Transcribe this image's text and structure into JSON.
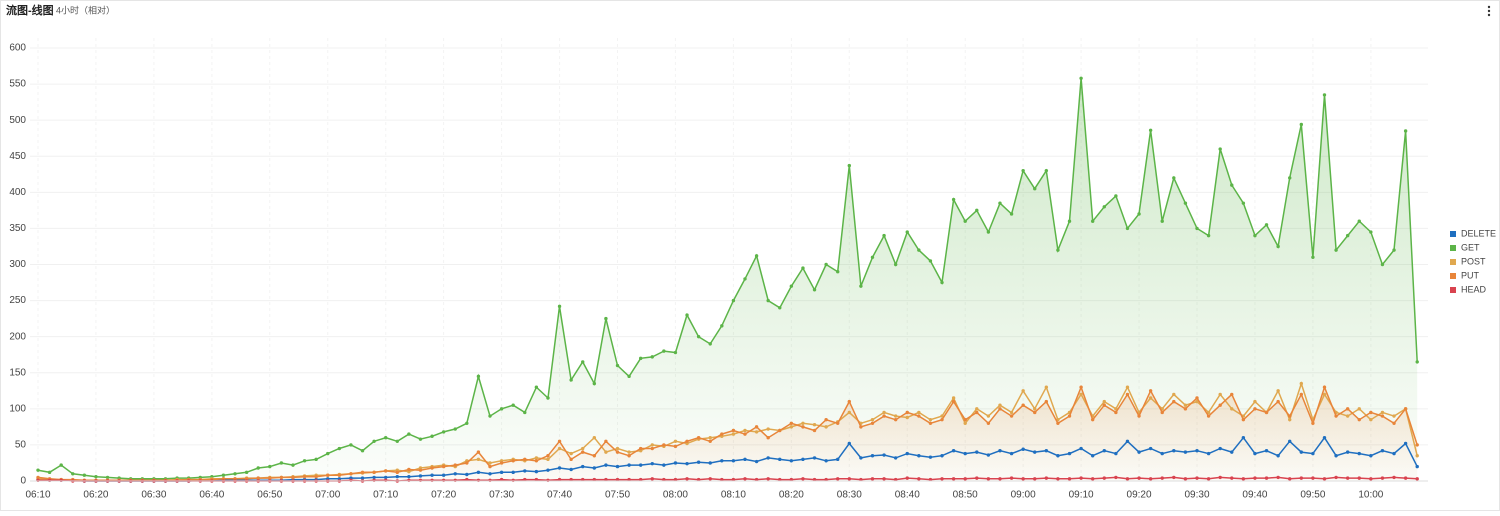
{
  "chart_data": {
    "type": "line",
    "title": "流图-线图",
    "subtitle": "4小时（相对）",
    "categories": [
      "06:10",
      null,
      null,
      null,
      null,
      "06:20",
      null,
      null,
      null,
      null,
      "06:30",
      null,
      null,
      null,
      null,
      "06:40",
      null,
      null,
      null,
      null,
      "06:50",
      null,
      null,
      null,
      null,
      "07:00",
      null,
      null,
      null,
      null,
      "07:10",
      null,
      null,
      null,
      null,
      "07:20",
      null,
      null,
      null,
      null,
      "07:30",
      null,
      null,
      null,
      null,
      "07:40",
      null,
      null,
      null,
      null,
      "07:50",
      null,
      null,
      null,
      null,
      "08:00",
      null,
      null,
      null,
      null,
      "08:10",
      null,
      null,
      null,
      null,
      "08:20",
      null,
      null,
      null,
      null,
      "08:30",
      null,
      null,
      null,
      null,
      "08:40",
      null,
      null,
      null,
      null,
      "08:50",
      null,
      null,
      null,
      null,
      "09:00",
      null,
      null,
      null,
      null,
      "09:10",
      null,
      null,
      null,
      null,
      "09:20",
      null,
      null,
      null,
      null,
      "09:30",
      null,
      null,
      null,
      null,
      "09:40",
      null,
      null,
      null,
      null,
      "09:50",
      null,
      null,
      null,
      null,
      "10:00",
      null,
      null,
      null,
      null
    ],
    "series": [
      {
        "name": "DELETE",
        "color": "#1f6fc0",
        "values": [
          2,
          1,
          1,
          1,
          0,
          0,
          0,
          0,
          0,
          0,
          0,
          0,
          0,
          0,
          1,
          1,
          1,
          1,
          1,
          1,
          1,
          1,
          2,
          2,
          2,
          3,
          3,
          4,
          4,
          5,
          5,
          6,
          6,
          7,
          8,
          8,
          10,
          9,
          12,
          10,
          12,
          12,
          14,
          13,
          15,
          18,
          16,
          20,
          18,
          22,
          20,
          22,
          22,
          24,
          22,
          25,
          24,
          26,
          25,
          28,
          28,
          30,
          27,
          32,
          30,
          28,
          30,
          32,
          28,
          30,
          52,
          32,
          35,
          36,
          32,
          38,
          35,
          33,
          35,
          42,
          38,
          40,
          36,
          42,
          38,
          44,
          40,
          42,
          35,
          38,
          45,
          35,
          42,
          38,
          55,
          40,
          45,
          38,
          42,
          40,
          42,
          38,
          45,
          40,
          60,
          38,
          42,
          35,
          55,
          40,
          38,
          60,
          35,
          40,
          38,
          35,
          42,
          38,
          52,
          20
        ]
      },
      {
        "name": "GET",
        "color": "#5cb448",
        "values": [
          15,
          12,
          22,
          10,
          8,
          6,
          5,
          4,
          3,
          3,
          3,
          3,
          4,
          4,
          5,
          6,
          8,
          10,
          12,
          18,
          20,
          25,
          22,
          28,
          30,
          38,
          45,
          50,
          42,
          55,
          60,
          55,
          65,
          58,
          62,
          68,
          72,
          80,
          145,
          90,
          100,
          105,
          95,
          130,
          115,
          242,
          140,
          165,
          135,
          225,
          160,
          145,
          170,
          172,
          180,
          178,
          230,
          200,
          190,
          215,
          250,
          280,
          312,
          250,
          240,
          270,
          295,
          265,
          300,
          290,
          437,
          270,
          310,
          340,
          300,
          345,
          320,
          305,
          275,
          390,
          360,
          375,
          345,
          385,
          370,
          430,
          405,
          430,
          320,
          360,
          558,
          360,
          380,
          395,
          350,
          370,
          486,
          360,
          420,
          385,
          350,
          340,
          460,
          410,
          385,
          340,
          355,
          325,
          420,
          494,
          310,
          535,
          320,
          340,
          360,
          345,
          300,
          320,
          485,
          165
        ]
      },
      {
        "name": "POST",
        "color": "#e0a84f",
        "values": [
          3,
          2,
          2,
          1,
          1,
          1,
          1,
          1,
          1,
          1,
          1,
          1,
          2,
          2,
          2,
          3,
          3,
          3,
          4,
          4,
          5,
          5,
          6,
          7,
          8,
          8,
          9,
          10,
          11,
          12,
          14,
          15,
          13,
          18,
          20,
          22,
          20,
          28,
          30,
          25,
          28,
          30,
          28,
          32,
          30,
          45,
          38,
          45,
          60,
          40,
          45,
          40,
          42,
          50,
          48,
          55,
          52,
          58,
          60,
          62,
          65,
          70,
          68,
          72,
          70,
          75,
          80,
          78,
          75,
          82,
          95,
          80,
          85,
          95,
          90,
          88,
          95,
          85,
          90,
          115,
          80,
          100,
          90,
          105,
          95,
          125,
          100,
          130,
          85,
          95,
          120,
          90,
          110,
          100,
          130,
          95,
          115,
          100,
          120,
          105,
          110,
          95,
          120,
          100,
          90,
          110,
          95,
          125,
          85,
          135,
          85,
          120,
          95,
          90,
          100,
          85,
          95,
          90,
          100,
          35
        ]
      },
      {
        "name": "PUT",
        "color": "#e8853a",
        "values": [
          5,
          3,
          2,
          2,
          1,
          1,
          1,
          1,
          1,
          1,
          1,
          1,
          1,
          2,
          2,
          2,
          3,
          3,
          3,
          4,
          4,
          5,
          5,
          6,
          6,
          8,
          8,
          10,
          12,
          12,
          14,
          12,
          16,
          15,
          18,
          20,
          22,
          25,
          40,
          20,
          25,
          28,
          30,
          28,
          35,
          55,
          30,
          40,
          35,
          55,
          40,
          35,
          45,
          45,
          50,
          48,
          55,
          60,
          55,
          65,
          70,
          65,
          75,
          60,
          70,
          80,
          75,
          70,
          85,
          80,
          110,
          75,
          80,
          90,
          85,
          95,
          90,
          80,
          85,
          110,
          85,
          95,
          80,
          100,
          90,
          105,
          95,
          110,
          80,
          90,
          130,
          85,
          105,
          95,
          120,
          90,
          125,
          95,
          110,
          100,
          115,
          90,
          105,
          120,
          85,
          100,
          95,
          110,
          90,
          120,
          80,
          130,
          90,
          100,
          85,
          95,
          90,
          80,
          100,
          50
        ]
      },
      {
        "name": "HEAD",
        "color": "#d9434f",
        "values": [
          1,
          1,
          1,
          0,
          0,
          0,
          0,
          0,
          0,
          0,
          0,
          0,
          0,
          0,
          0,
          0,
          0,
          0,
          0,
          0,
          0,
          0,
          0,
          0,
          0,
          0,
          0,
          1,
          0,
          1,
          1,
          0,
          1,
          1,
          1,
          1,
          1,
          2,
          1,
          1,
          2,
          1,
          2,
          2,
          1,
          2,
          2,
          2,
          2,
          2,
          2,
          2,
          2,
          3,
          2,
          2,
          3,
          2,
          3,
          2,
          2,
          3,
          2,
          3,
          2,
          2,
          3,
          2,
          2,
          3,
          3,
          2,
          3,
          3,
          2,
          4,
          3,
          2,
          3,
          3,
          3,
          4,
          3,
          3,
          4,
          3,
          3,
          4,
          3,
          3,
          4,
          3,
          4,
          5,
          3,
          4,
          3,
          4,
          5,
          3,
          4,
          3,
          5,
          4,
          3,
          4,
          4,
          5,
          3,
          4,
          4,
          3,
          5,
          4,
          4,
          3,
          4,
          5,
          4,
          3
        ]
      }
    ],
    "ylim": [
      0,
      600
    ],
    "yticks": [
      0,
      50,
      100,
      150,
      200,
      250,
      300,
      350,
      400,
      450,
      500,
      550,
      600
    ],
    "grid": true,
    "legend": "right"
  }
}
